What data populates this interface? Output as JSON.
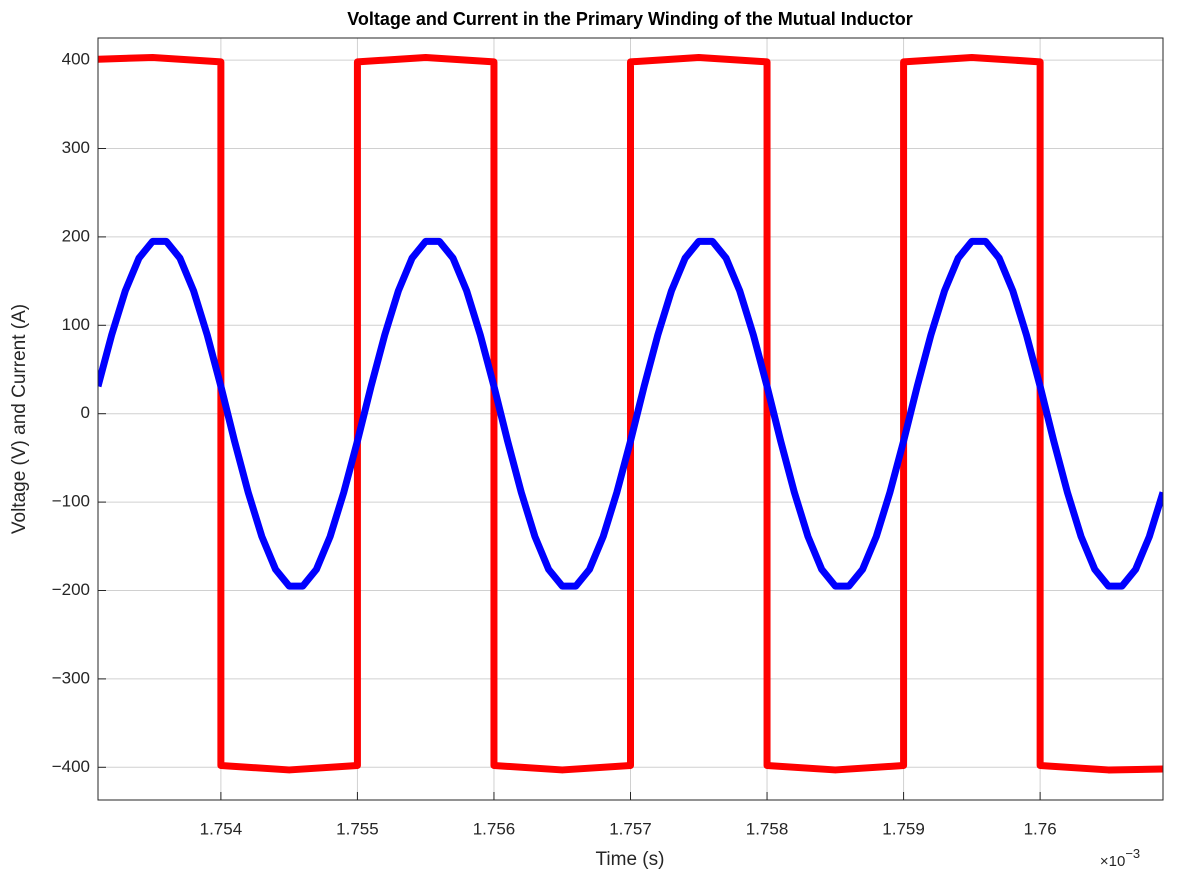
{
  "chart_data": {
    "type": "line",
    "title": "Voltage and Current in the Primary Winding of the Mutual Inductor",
    "xlabel": "Time (s)",
    "ylabel": "Voltage (V) and Current (A)",
    "x_multiplier_label": "×10",
    "x_exponent_label": "−3",
    "xlim": [
      1.7531,
      1.7609
    ],
    "ylim": [
      -437,
      425
    ],
    "xticks": [
      1.754,
      1.755,
      1.756,
      1.757,
      1.758,
      1.759,
      1.76
    ],
    "yticks": [
      {
        "value": -400,
        "label": "−400"
      },
      {
        "value": -300,
        "label": "−300"
      },
      {
        "value": -200,
        "label": "−200"
      },
      {
        "value": -100,
        "label": "−100"
      },
      0,
      100,
      200,
      300,
      400
    ],
    "grid": true,
    "series": [
      {
        "color": "#ff0000",
        "x": [
          1.7531,
          1.7535,
          1.754,
          1.754,
          1.7545,
          1.755,
          1.755,
          1.7555,
          1.756,
          1.756,
          1.7565,
          1.757,
          1.757,
          1.7575,
          1.758,
          1.758,
          1.7585,
          1.759,
          1.759,
          1.7595,
          1.76,
          1.76,
          1.7605,
          1.7609
        ],
        "values": [
          401,
          403,
          398,
          -398,
          -403,
          -398,
          398,
          403,
          398,
          -398,
          -403,
          -398,
          398,
          403,
          398,
          -398,
          -403,
          -398,
          398,
          403,
          398,
          -398,
          -403,
          -402
        ]
      },
      {
        "color": "#0000ff",
        "x": [
          1.7531,
          1.7532,
          1.7533,
          1.7534,
          1.7535,
          1.7536,
          1.7537,
          1.7538,
          1.7539,
          1.754,
          1.7541,
          1.7542,
          1.7543,
          1.7544,
          1.7545,
          1.7546,
          1.7547,
          1.7548,
          1.7549,
          1.755,
          1.7551,
          1.7552,
          1.7553,
          1.7554,
          1.7555,
          1.7556,
          1.7557,
          1.7558,
          1.7559,
          1.756,
          1.7561,
          1.7562,
          1.7563,
          1.7564,
          1.7565,
          1.7566,
          1.7567,
          1.7568,
          1.7569,
          1.757,
          1.7571,
          1.7572,
          1.7573,
          1.7574,
          1.7575,
          1.7576,
          1.7577,
          1.7578,
          1.7579,
          1.758,
          1.7581,
          1.7582,
          1.7583,
          1.7584,
          1.7585,
          1.7586,
          1.7587,
          1.7588,
          1.7589,
          1.759,
          1.7591,
          1.7592,
          1.7593,
          1.7594,
          1.7595,
          1.7596,
          1.7597,
          1.7598,
          1.7599,
          1.76,
          1.7601,
          1.7602,
          1.7603,
          1.7604,
          1.7605,
          1.7606,
          1.7607,
          1.7608,
          1.7609
        ],
        "values": [
          31,
          89,
          139,
          176,
          195,
          195,
          176,
          139,
          89,
          31,
          -31,
          -89,
          -139,
          -176,
          -195,
          -195,
          -176,
          -139,
          -89,
          -31,
          31,
          89,
          139,
          176,
          195,
          195,
          176,
          139,
          89,
          31,
          -31,
          -89,
          -139,
          -176,
          -195,
          -195,
          -176,
          -139,
          -89,
          -31,
          31,
          89,
          139,
          176,
          195,
          195,
          176,
          139,
          89,
          31,
          -31,
          -89,
          -139,
          -176,
          -195,
          -195,
          -176,
          -139,
          -89,
          -31,
          31,
          89,
          139,
          176,
          195,
          195,
          176,
          139,
          89,
          31,
          -31,
          -89,
          -139,
          -176,
          -195,
          -195,
          -176,
          -139,
          -89
        ]
      }
    ]
  }
}
